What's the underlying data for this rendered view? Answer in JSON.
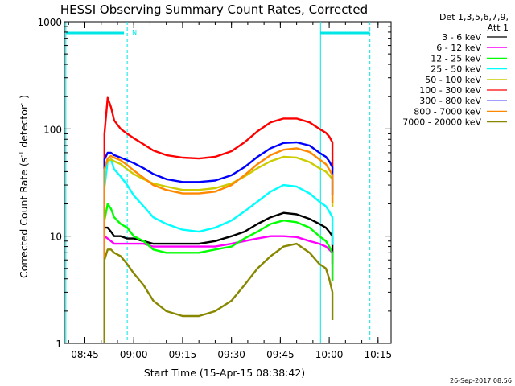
{
  "chart_data": {
    "type": "line",
    "title": "HESSI Observing Summary Count Rates, Corrected",
    "xlabel": "Start Time (15-Apr-15 08:38:42)",
    "ylabel_main": "Corrected Count Rate (s",
    "ylabel_sup1": "-1",
    "ylabel_mid": " detector",
    "ylabel_sup2": "-1",
    "ylabel_end": ")",
    "yscale": "log",
    "ylim": [
      1,
      1000
    ],
    "xlim": [
      "08:38:42",
      "10:19:00"
    ],
    "x_ticks": [
      "08:45",
      "09:00",
      "09:15",
      "09:30",
      "09:45",
      "10:00",
      "10:15"
    ],
    "y_ticks": [
      "1",
      "10",
      "100",
      "1000"
    ],
    "legend_header": [
      "Det 1,3,5,6,7,9,",
      "Att 1"
    ],
    "night_marker_label": "N",
    "footer_date": "26-Sep-2017 08:56",
    "x_times": [
      "08:51",
      "08:52",
      "08:53",
      "08:54",
      "08:56",
      "08:58",
      "09:00",
      "09:03",
      "09:06",
      "09:10",
      "09:15",
      "09:20",
      "09:25",
      "09:30",
      "09:34",
      "09:38",
      "09:42",
      "09:46",
      "09:50",
      "09:54",
      "09:57",
      "09:59",
      "10:00",
      "10:01"
    ],
    "series": [
      {
        "name": "3 - 6 keV",
        "color": "#000000",
        "values": [
          12,
          12,
          11,
          10,
          10,
          9.5,
          9.5,
          9,
          8.5,
          8.5,
          8.5,
          8.5,
          9,
          10,
          11,
          13,
          15,
          16.5,
          16,
          14.5,
          13,
          12,
          11,
          10
        ]
      },
      {
        "name": "6 - 12 keV",
        "color": "#ff00ff",
        "values": [
          10,
          9.5,
          9,
          8.5,
          8.5,
          8.5,
          8.5,
          8.5,
          8,
          8,
          8,
          8,
          8,
          8.5,
          9,
          9.5,
          10,
          10,
          9.8,
          9,
          8.5,
          8,
          7.5,
          7
        ]
      },
      {
        "name": "12 - 25 keV",
        "color": "#00ff00",
        "values": [
          14,
          20,
          18,
          15,
          13,
          12,
          10,
          9,
          7.5,
          7,
          7,
          7,
          7.5,
          8,
          9.5,
          11,
          13,
          14,
          13.5,
          12,
          10,
          9,
          8,
          7
        ]
      },
      {
        "name": "25 - 50 keV",
        "color": "#00ffff",
        "values": [
          28,
          50,
          52,
          42,
          36,
          30,
          24,
          19,
          15,
          13,
          11.5,
          11,
          12,
          14,
          17,
          21,
          26,
          30,
          29,
          25,
          21,
          19,
          17,
          15
        ]
      },
      {
        "name": "50 - 100 keV",
        "color": "#cccc00",
        "values": [
          45,
          50,
          52,
          50,
          47,
          42,
          38,
          34,
          31,
          29,
          27,
          27,
          28,
          31,
          36,
          43,
          50,
          55,
          54,
          49,
          43,
          40,
          37,
          34
        ]
      },
      {
        "name": "100 - 300 keV",
        "color": "#ff0000",
        "values": [
          90,
          195,
          160,
          120,
          100,
          90,
          82,
          72,
          63,
          57,
          54,
          53,
          55,
          62,
          75,
          95,
          115,
          125,
          125,
          115,
          100,
          92,
          85,
          75
        ]
      },
      {
        "name": "300 - 800 keV",
        "color": "#0000ff",
        "values": [
          52,
          60,
          60,
          57,
          54,
          51,
          48,
          43,
          38,
          34,
          32,
          32,
          33,
          37,
          44,
          55,
          66,
          74,
          75,
          70,
          60,
          55,
          50,
          44
        ]
      },
      {
        "name": "800 - 7000 keV",
        "color": "#ff8800",
        "values": [
          42,
          53,
          56,
          54,
          51,
          46,
          41,
          35,
          30,
          27,
          25,
          25,
          26,
          30,
          37,
          47,
          57,
          64,
          66,
          61,
          52,
          47,
          42,
          37
        ]
      },
      {
        "name": "7000 - 20000 keV",
        "color": "#888800",
        "values": [
          6,
          7.5,
          7.5,
          7,
          6.5,
          5.5,
          4.5,
          3.5,
          2.5,
          2,
          1.8,
          1.8,
          2,
          2.5,
          3.5,
          5,
          6.5,
          8,
          8.5,
          7,
          5.5,
          5,
          4,
          3
        ]
      }
    ]
  }
}
